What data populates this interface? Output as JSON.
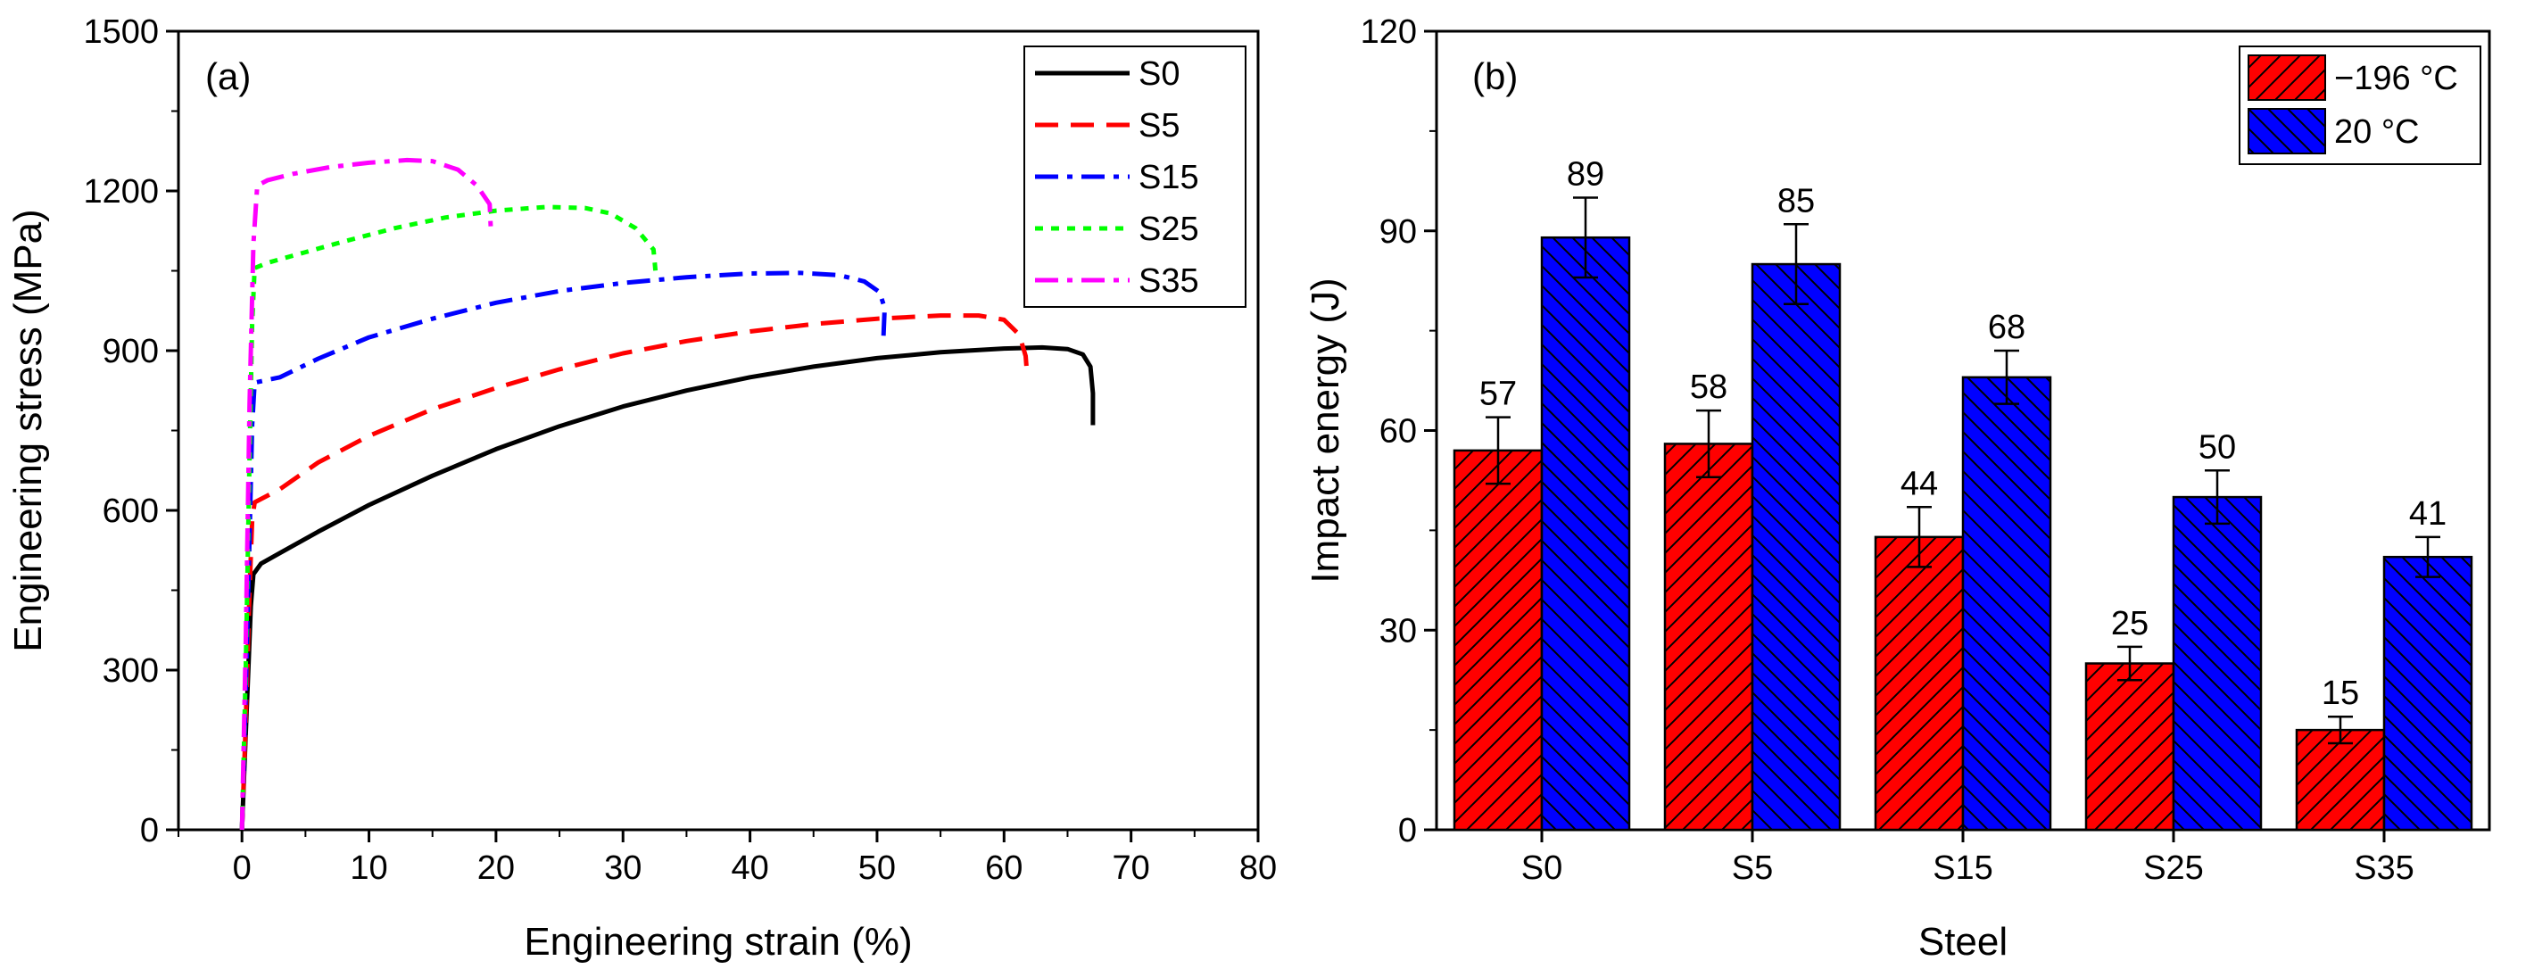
{
  "chart_data": [
    {
      "type": "line",
      "panel_label": "(a)",
      "xlabel": "Engineering strain (%)",
      "ylabel": "Engineering stress (MPa)",
      "xlim": [
        -5,
        80
      ],
      "ylim": [
        0,
        1500
      ],
      "xticks": [
        0,
        10,
        20,
        30,
        40,
        50,
        60,
        70,
        80
      ],
      "yticks": [
        0,
        300,
        600,
        900,
        1200,
        1500
      ],
      "legend_position": "top-right",
      "series": [
        {
          "name": "S0",
          "color": "#000000",
          "dash": "solid",
          "points": [
            [
              0,
              0
            ],
            [
              0.25,
              150
            ],
            [
              0.5,
              300
            ],
            [
              0.7,
              420
            ],
            [
              0.9,
              480
            ],
            [
              1.5,
              500
            ],
            [
              3,
              520
            ],
            [
              6,
              560
            ],
            [
              10,
              610
            ],
            [
              15,
              665
            ],
            [
              20,
              715
            ],
            [
              25,
              758
            ],
            [
              30,
              795
            ],
            [
              35,
              825
            ],
            [
              40,
              850
            ],
            [
              45,
              870
            ],
            [
              50,
              886
            ],
            [
              55,
              897
            ],
            [
              60,
              904
            ],
            [
              63,
              906
            ],
            [
              65,
              903
            ],
            [
              66.2,
              893
            ],
            [
              66.8,
              870
            ],
            [
              67,
              820
            ],
            [
              67,
              760
            ]
          ]
        },
        {
          "name": "S5",
          "color": "#ff0000",
          "dash": "dash",
          "points": [
            [
              0,
              0
            ],
            [
              0.3,
              200
            ],
            [
              0.6,
              450
            ],
            [
              0.8,
              580
            ],
            [
              1,
              615
            ],
            [
              3,
              640
            ],
            [
              6,
              690
            ],
            [
              10,
              740
            ],
            [
              15,
              790
            ],
            [
              20,
              830
            ],
            [
              25,
              865
            ],
            [
              30,
              895
            ],
            [
              35,
              918
            ],
            [
              40,
              936
            ],
            [
              45,
              950
            ],
            [
              50,
              960
            ],
            [
              55,
              966
            ],
            [
              58,
              966
            ],
            [
              60,
              958
            ],
            [
              61.2,
              930
            ],
            [
              61.7,
              890
            ],
            [
              61.8,
              860
            ]
          ]
        },
        {
          "name": "S15",
          "color": "#0000ff",
          "dash": "dashdot",
          "points": [
            [
              0,
              0
            ],
            [
              0.3,
              250
            ],
            [
              0.6,
              550
            ],
            [
              0.8,
              760
            ],
            [
              1,
              840
            ],
            [
              3,
              850
            ],
            [
              6,
              885
            ],
            [
              10,
              925
            ],
            [
              15,
              960
            ],
            [
              20,
              990
            ],
            [
              25,
              1012
            ],
            [
              30,
              1027
            ],
            [
              35,
              1038
            ],
            [
              40,
              1045
            ],
            [
              44,
              1046
            ],
            [
              47,
              1042
            ],
            [
              49,
              1030
            ],
            [
              50.2,
              1010
            ],
            [
              50.6,
              980
            ],
            [
              50.5,
              925
            ]
          ]
        },
        {
          "name": "S25",
          "color": "#00ff00",
          "dash": "dot",
          "points": [
            [
              0,
              0
            ],
            [
              0.3,
              300
            ],
            [
              0.6,
              700
            ],
            [
              0.8,
              950
            ],
            [
              1,
              1055
            ],
            [
              2,
              1065
            ],
            [
              5,
              1085
            ],
            [
              8,
              1105
            ],
            [
              12,
              1130
            ],
            [
              16,
              1150
            ],
            [
              20,
              1163
            ],
            [
              24,
              1170
            ],
            [
              27,
              1168
            ],
            [
              29,
              1158
            ],
            [
              31,
              1130
            ],
            [
              32.4,
              1090
            ],
            [
              32.6,
              1040
            ]
          ]
        },
        {
          "name": "S35",
          "color": "#ff00ff",
          "dash": "dashdot",
          "points": [
            [
              0,
              0
            ],
            [
              0.3,
              350
            ],
            [
              0.6,
              800
            ],
            [
              0.9,
              1100
            ],
            [
              1.2,
              1210
            ],
            [
              2,
              1220
            ],
            [
              4,
              1232
            ],
            [
              7,
              1245
            ],
            [
              10,
              1253
            ],
            [
              13,
              1258
            ],
            [
              15,
              1256
            ],
            [
              17,
              1240
            ],
            [
              18.5,
              1210
            ],
            [
              19.5,
              1175
            ],
            [
              19.6,
              1125
            ]
          ]
        }
      ]
    },
    {
      "type": "bar",
      "panel_label": "(b)",
      "xlabel": "Steel",
      "ylabel": "Impact energy (J)",
      "ylim": [
        0,
        120
      ],
      "yticks": [
        0,
        30,
        60,
        90,
        120
      ],
      "categories": [
        "S0",
        "S5",
        "S15",
        "S25",
        "S35"
      ],
      "legend_position": "top-right",
      "series": [
        {
          "name": "−196 °C",
          "color": "#ff0000",
          "hatch": "forward-diagonal",
          "values": [
            57,
            58,
            44,
            25,
            15
          ],
          "errors": [
            5,
            5,
            4.5,
            2.5,
            2
          ],
          "labels": [
            "57",
            "58",
            "44",
            "25",
            "15"
          ]
        },
        {
          "name": "20 °C",
          "color": "#0000ff",
          "hatch": "back-diagonal",
          "values": [
            89,
            85,
            68,
            50,
            41
          ],
          "errors": [
            6,
            6,
            4,
            4,
            3
          ],
          "labels": [
            "89",
            "85",
            "68",
            "50",
            "41"
          ]
        }
      ]
    }
  ]
}
